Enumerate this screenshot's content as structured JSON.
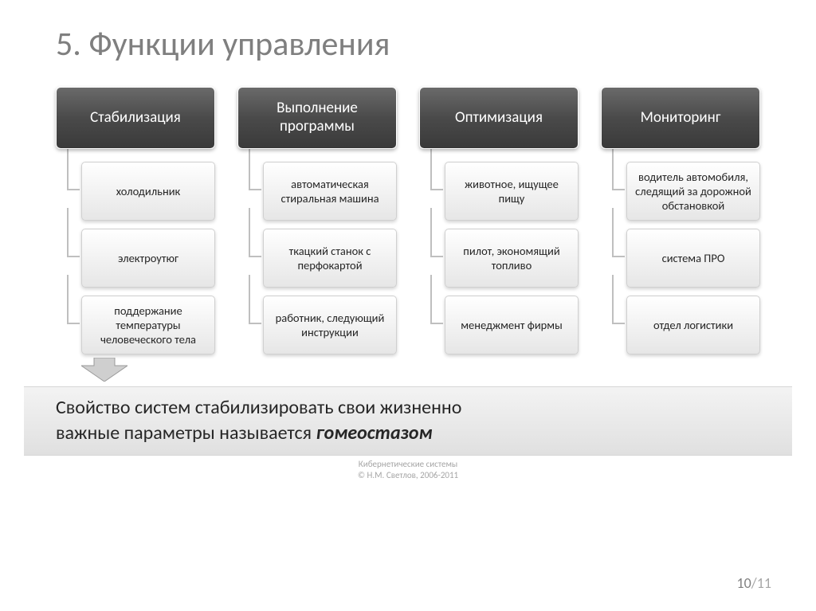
{
  "title": "5. Функции управления",
  "columns": [
    {
      "header": "Стабилизация",
      "items": [
        "холодильник",
        "электроутюг",
        "поддержание температуры человеческого тела"
      ],
      "arrow_below": true
    },
    {
      "header": "Выполнение программы",
      "items": [
        "автоматическая стиральная машина",
        "ткацкий станок с перфокартой",
        "работник, следующий инструкции"
      ]
    },
    {
      "header": "Оптимизация",
      "items": [
        "животное, ищущее пищу",
        "пилот, экономящий топливо",
        "менеджмент фирмы"
      ]
    },
    {
      "header": "Мониторинг",
      "items": [
        "водитель автомобиля, следящий за дорожной обстановкой",
        "система ПРО",
        "отдел логистики"
      ]
    }
  ],
  "footer_line1": "Свойство систем стабилизировать свои жизненно",
  "footer_line2_prefix": "важные параметры называется ",
  "footer_line2_em": "гомеостазом",
  "credit_line1": "Кибернетические системы",
  "credit_line2": "© Н.М. Светлов, 2006-2011",
  "page_current": "10",
  "page_total": "/11",
  "style": {
    "header_bg_from": "#6a6a6a",
    "header_bg_to": "#3a3a3a",
    "header_text": "#ffffff",
    "item_bg_from": "#ffffff",
    "item_bg_to": "#e6e6e6",
    "item_border": "#d0d0d0",
    "connector": "#bfbfbf",
    "title_color": "#7f7f7f",
    "title_fontsize": 42,
    "header_fontsize": 19,
    "item_fontsize": 14.5,
    "footer_fontsize": 24,
    "arrow_fill": "#cfcfcf",
    "arrow_stroke": "#9a9a9a",
    "background": "#ffffff"
  }
}
